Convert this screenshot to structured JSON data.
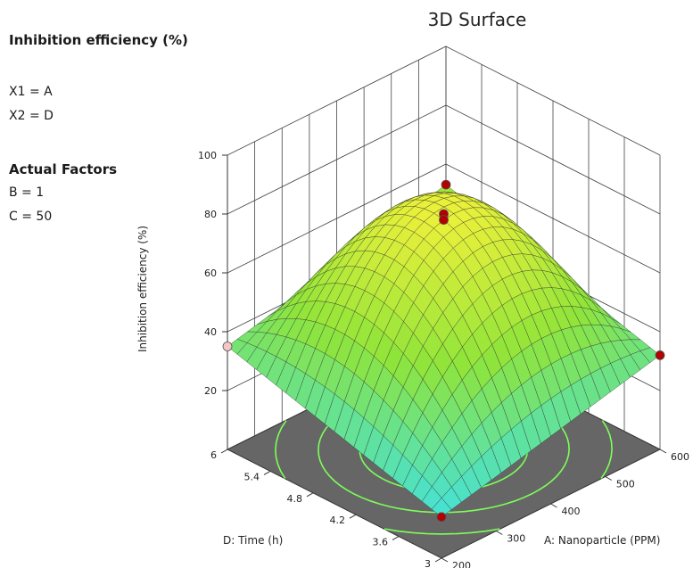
{
  "panel": {
    "response_label": "Inhibition efficiency (%)",
    "x1": "X1 = A",
    "x2": "X2 = D",
    "actual_factors_heading": "Actual Factors",
    "factor_b": "B = 1",
    "factor_c": "C = 50"
  },
  "chart_data": {
    "type": "surface",
    "title": "3D Surface",
    "xlabel": "A: Nanoparticle (PPM)",
    "ylabel": "D: Time (h)",
    "zlabel": "Inhibition efficiency (%)",
    "xlim": [
      200,
      600
    ],
    "ylim": [
      3,
      6
    ],
    "zlim": [
      0,
      100
    ],
    "x_ticks": [
      "200",
      "300",
      "400",
      "500",
      "600"
    ],
    "y_ticks": [
      "3",
      "3.6",
      "4.2",
      "4.8",
      "5.4",
      "6"
    ],
    "z_ticks": [
      "20",
      "40",
      "60",
      "80",
      "100"
    ],
    "surface_model": {
      "description": "quadratic response surface, peak near centre",
      "center": [
        400,
        4.5
      ],
      "peak": 78,
      "corners": {
        "x200_y3": 14,
        "x200_y6": 35,
        "x600_y3": 32,
        "x600_y6": 53
      }
    },
    "design_points": [
      {
        "x": 200,
        "y": 6,
        "z": 35,
        "color": "#f4c6c6"
      },
      {
        "x": 200,
        "y": 3,
        "z": 14,
        "color": "#b30000"
      },
      {
        "x": 600,
        "y": 6,
        "z": 53,
        "color": "#b30000"
      },
      {
        "x": 600,
        "y": 3,
        "z": 32,
        "color": "#b30000"
      },
      {
        "x": 400,
        "y": 4.5,
        "z": 80,
        "color": "#b30000"
      },
      {
        "x": 400,
        "y": 4.5,
        "z": 78,
        "color": "#b30000"
      }
    ],
    "colors": {
      "low": "#3de0e8",
      "mid": "#8fe43a",
      "high": "#e8f03a",
      "contour": "#7dff5a",
      "floor": "#666666"
    }
  }
}
